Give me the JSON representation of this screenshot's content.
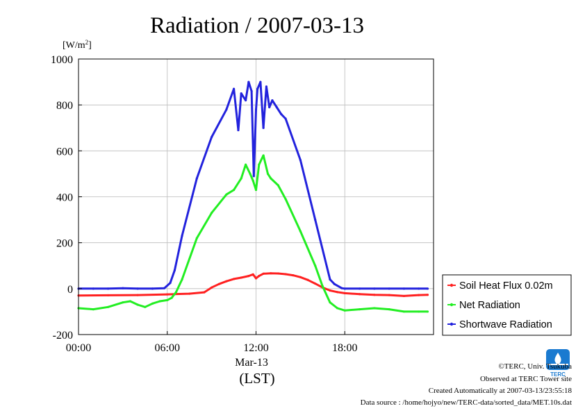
{
  "chart_data": {
    "type": "line",
    "title": "Radiation / 2007-03-13",
    "ylabel": "[W/m",
    "ylabel_sup": "2",
    "ylabel_close": "]",
    "xlabel_date": "Mar-13",
    "xlabel_zone": "(LST)",
    "xlim": [
      0,
      24
    ],
    "ylim": [
      -200,
      1000
    ],
    "x_ticks": [
      {
        "value": 0,
        "label": "00:00"
      },
      {
        "value": 6,
        "label": "06:00"
      },
      {
        "value": 12,
        "label": "12:00"
      },
      {
        "value": 18,
        "label": "18:00"
      }
    ],
    "y_ticks": [
      {
        "value": -200,
        "label": "-200"
      },
      {
        "value": 0,
        "label": "0"
      },
      {
        "value": 200,
        "label": "200"
      },
      {
        "value": 400,
        "label": "400"
      },
      {
        "value": 600,
        "label": "600"
      },
      {
        "value": 800,
        "label": "800"
      },
      {
        "value": 1000,
        "label": "1000"
      }
    ],
    "grid": true,
    "legend_position": "right",
    "series": [
      {
        "name": "Soil Heat Flux 0.02m",
        "color": "#ff2020",
        "x": [
          0,
          2,
          4,
          6,
          7.5,
          8.5,
          9,
          9.5,
          10,
          10.5,
          11,
          11.5,
          11.8,
          12,
          12.2,
          12.5,
          13,
          13.5,
          14,
          14.5,
          15,
          15.5,
          16,
          16.5,
          17,
          17.5,
          18,
          19,
          20,
          21,
          22,
          23,
          23.6
        ],
        "y": [
          -30,
          -29,
          -28,
          -25,
          -22,
          -16,
          5,
          20,
          32,
          42,
          48,
          55,
          62,
          45,
          55,
          65,
          67,
          66,
          63,
          58,
          50,
          38,
          22,
          5,
          -8,
          -15,
          -20,
          -24,
          -27,
          -28,
          -32,
          -28,
          -27
        ]
      },
      {
        "name": "Net Radiation",
        "color": "#22ee22",
        "x": [
          0,
          1,
          2,
          3,
          3.5,
          4,
          4.5,
          5,
          5.5,
          6,
          6.3,
          6.6,
          7,
          8,
          9,
          10,
          10.5,
          11,
          11.3,
          11.6,
          11.8,
          12,
          12.2,
          12.5,
          12.8,
          13,
          13.5,
          14,
          15,
          16,
          16.5,
          17,
          17.5,
          18,
          19,
          20,
          21,
          22,
          23,
          23.6
        ],
        "y": [
          -85,
          -90,
          -80,
          -60,
          -55,
          -70,
          -80,
          -65,
          -55,
          -50,
          -40,
          -15,
          40,
          220,
          330,
          410,
          430,
          480,
          540,
          500,
          470,
          430,
          540,
          580,
          500,
          480,
          450,
          390,
          250,
          100,
          10,
          -60,
          -85,
          -95,
          -90,
          -85,
          -90,
          -100,
          -100,
          -100
        ]
      },
      {
        "name": "Shortwave Radiation",
        "color": "#2222dd",
        "x": [
          0,
          1,
          2,
          3,
          4,
          5,
          5.8,
          6.2,
          6.5,
          7,
          8,
          9,
          10,
          10.5,
          10.8,
          11,
          11.3,
          11.5,
          11.7,
          11.85,
          12,
          12.1,
          12.3,
          12.5,
          12.7,
          12.9,
          13.1,
          13.4,
          13.7,
          14,
          15,
          16,
          17,
          17.3,
          17.8,
          18,
          19,
          20,
          21,
          22,
          23,
          23.6
        ],
        "y": [
          0,
          0,
          0,
          2,
          0,
          0,
          2,
          25,
          80,
          230,
          480,
          660,
          780,
          870,
          690,
          850,
          820,
          900,
          860,
          490,
          780,
          870,
          900,
          700,
          880,
          790,
          820,
          790,
          760,
          740,
          560,
          300,
          40,
          20,
          2,
          0,
          0,
          0,
          0,
          0,
          0,
          0
        ]
      }
    ]
  },
  "credits": {
    "copyright": "©TERC, Univ. Tsukuba",
    "observed": "Observed at TERC Tower site",
    "created": "Created Automatically at 2007-03-13/23:55:18",
    "source": "Data source : /home/hojyo/new/TERC-data/sorted_data/MET.10s.dat"
  },
  "logo": {
    "text": "TERC",
    "color": "#1a7ad0"
  }
}
